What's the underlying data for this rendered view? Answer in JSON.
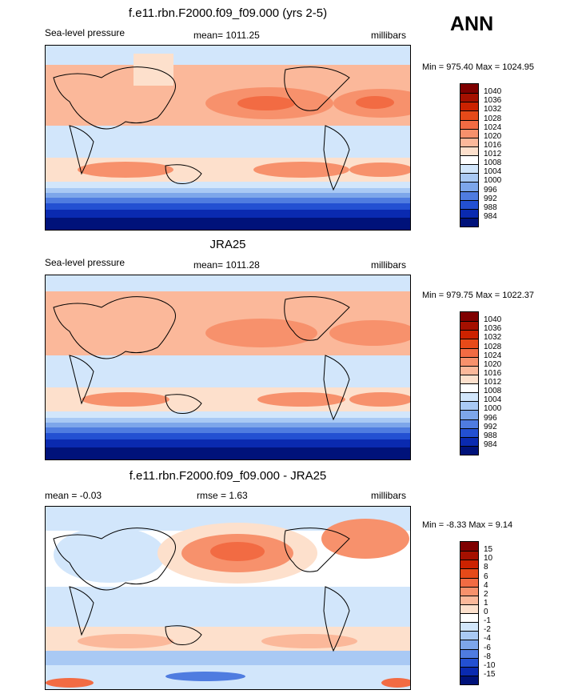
{
  "season": "ANN",
  "panels": [
    {
      "title": "f.e11.rbn.F2000.f09_f09.000 (yrs 2-5)",
      "left_label": "Sea-level pressure",
      "center_label": "mean= 1011.25",
      "right_label": "millibars",
      "minmax": "Min = 975.40 Max = 1024.95"
    },
    {
      "title": "JRA25",
      "left_label": "Sea-level pressure",
      "center_label": "mean= 1011.28",
      "right_label": "millibars",
      "minmax": "Min = 979.75 Max = 1022.37"
    },
    {
      "title": "f.e11.rbn.F2000.f09_f09.000 - JRA25",
      "left_label": "mean =  -0.03",
      "center_label": "rmse =   1.63",
      "right_label": "millibars",
      "minmax": "Min =  -8.33 Max =   9.14"
    }
  ],
  "chart_data": [
    {
      "type": "heatmap",
      "title": "f.e11.rbn.F2000.f09_f09.000 (yrs 2-5)",
      "variable": "Sea-level pressure",
      "units": "millibars",
      "mean": 1011.25,
      "min": 975.4,
      "max": 1024.95,
      "colorbar_levels": [
        "1040",
        "1036",
        "1032",
        "1028",
        "1024",
        "1020",
        "1016",
        "1012",
        "1008",
        "1004",
        "1000",
        "996",
        "992",
        "988",
        "984"
      ],
      "colors": [
        "#7f0000",
        "#a51000",
        "#cc2200",
        "#e64a19",
        "#f26b43",
        "#f7916c",
        "#fbb89a",
        "#fde0cc",
        "#ffffff",
        "#d2e6fb",
        "#a9c9f4",
        "#7da6ea",
        "#4f7ce0",
        "#2350d2",
        "#0a2ab0",
        "#00127a"
      ],
      "grid": false,
      "legend": "right"
    },
    {
      "type": "heatmap",
      "title": "JRA25",
      "variable": "Sea-level pressure",
      "units": "millibars",
      "mean": 1011.28,
      "min": 979.75,
      "max": 1022.37,
      "colorbar_levels": [
        "1040",
        "1036",
        "1032",
        "1028",
        "1024",
        "1020",
        "1016",
        "1012",
        "1008",
        "1004",
        "1000",
        "996",
        "992",
        "988",
        "984"
      ],
      "colors": [
        "#7f0000",
        "#a51000",
        "#cc2200",
        "#e64a19",
        "#f26b43",
        "#f7916c",
        "#fbb89a",
        "#fde0cc",
        "#ffffff",
        "#d2e6fb",
        "#a9c9f4",
        "#7da6ea",
        "#4f7ce0",
        "#2350d2",
        "#0a2ab0",
        "#00127a"
      ],
      "grid": false,
      "legend": "right"
    },
    {
      "type": "heatmap",
      "title": "f.e11.rbn.F2000.f09_f09.000 - JRA25",
      "units": "millibars",
      "mean": -0.03,
      "rmse": 1.63,
      "min": -8.33,
      "max": 9.14,
      "colorbar_levels": [
        "15",
        "10",
        "8",
        "6",
        "4",
        "2",
        "1",
        "0",
        "-1",
        "-2",
        "-4",
        "-6",
        "-8",
        "-10",
        "-15"
      ],
      "colors": [
        "#7f0000",
        "#a51000",
        "#cc2200",
        "#e64a19",
        "#f26b43",
        "#f7916c",
        "#fbb89a",
        "#fde0cc",
        "#ffffff",
        "#d2e6fb",
        "#a9c9f4",
        "#7da6ea",
        "#4f7ce0",
        "#2350d2",
        "#0a2ab0",
        "#00127a"
      ],
      "grid": false,
      "legend": "right"
    }
  ]
}
